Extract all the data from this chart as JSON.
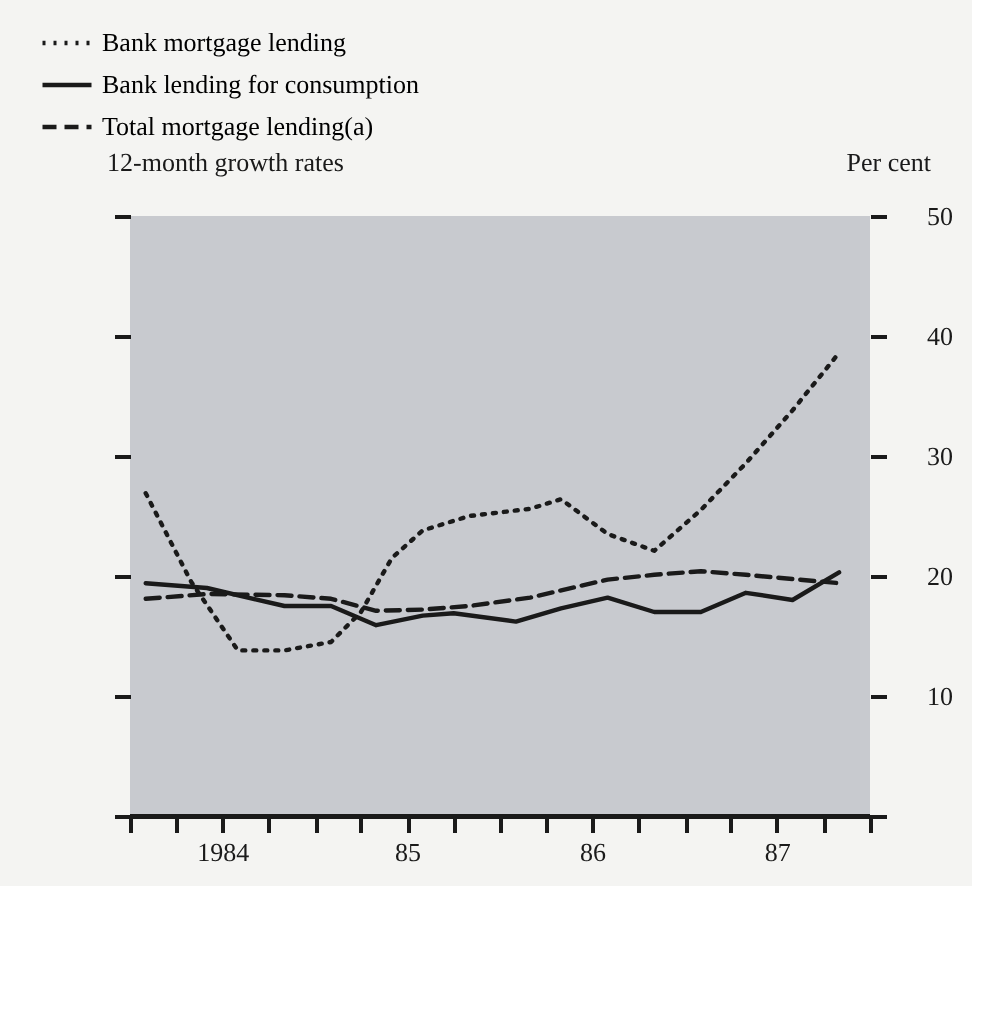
{
  "chart_data": {
    "type": "line",
    "ylabel": "12-month growth rates",
    "y2label": "Per cent",
    "xlim": [
      "1984",
      "1988"
    ],
    "xticks": [
      {
        "value": "1984",
        "label": null
      },
      {
        "value": "1984-04",
        "label": null
      },
      {
        "value": "1984-07",
        "label": "1984"
      },
      {
        "value": "1984-10",
        "label": null
      },
      {
        "value": "1985",
        "label": null
      },
      {
        "value": "1985-04",
        "label": null
      },
      {
        "value": "1985-07",
        "label": "85"
      },
      {
        "value": "1985-10",
        "label": null
      },
      {
        "value": "1986",
        "label": null
      },
      {
        "value": "1986-04",
        "label": null
      },
      {
        "value": "1986-07",
        "label": "86"
      },
      {
        "value": "1986-10",
        "label": null
      },
      {
        "value": "1987",
        "label": null
      },
      {
        "value": "1987-04",
        "label": null
      },
      {
        "value": "1987-07",
        "label": "87"
      },
      {
        "value": "1987-10",
        "label": null
      },
      {
        "value": "1988",
        "label": null
      }
    ],
    "y2lim": [
      0,
      50
    ],
    "y2ticks": [
      {
        "value": 0,
        "label": null
      },
      10,
      20,
      30,
      40,
      50
    ],
    "grid": false,
    "legend": "top left",
    "series": [
      {
        "name": "Bank mortgage lending",
        "color": "#1a1a1a",
        "axis": "y2",
        "line_style": "dotted",
        "x": [
          "1984-02",
          "1984-05",
          "1984-08",
          "1984-11",
          "1985-02",
          "1985-04",
          "1985-06",
          "1985-08",
          "1985-11",
          "1986-03",
          "1986-05",
          "1986-08",
          "1986-11",
          "1987-02",
          "1987-05",
          "1987-08",
          "1987-11"
        ],
        "values": [
          26.9,
          19.5,
          13.8,
          13.8,
          14.5,
          17.0,
          21.5,
          23.8,
          25.0,
          25.6,
          26.4,
          23.5,
          22.1,
          25.5,
          29.4,
          33.8,
          38.6
        ]
      },
      {
        "name": "Bank lending for consumption",
        "color": "#1a1a1a",
        "axis": "y2",
        "line_style": "solid",
        "x": [
          "1984-02",
          "1984-06",
          "1984-11",
          "1985-02",
          "1985-05",
          "1985-08",
          "1985-10",
          "1986-02",
          "1986-05",
          "1986-08",
          "1986-11",
          "1987-02",
          "1987-05",
          "1987-08",
          "1987-11"
        ],
        "values": [
          19.4,
          19.0,
          17.5,
          17.5,
          15.9,
          16.7,
          16.9,
          16.2,
          17.3,
          18.2,
          17.0,
          17.0,
          18.6,
          18.0,
          20.3
        ]
      },
      {
        "name": "Total mortgage lending(a)",
        "color": "#1a1a1a",
        "axis": "y2",
        "line_style": "dashed",
        "x": [
          "1984-02",
          "1984-06",
          "1984-11",
          "1985-02",
          "1985-05",
          "1985-08",
          "1985-11",
          "1986-03",
          "1986-08",
          "1986-11",
          "1987-02",
          "1987-05",
          "1987-11"
        ],
        "values": [
          18.1,
          18.5,
          18.4,
          18.1,
          17.1,
          17.2,
          17.5,
          18.2,
          19.7,
          20.1,
          20.4,
          20.1,
          19.4
        ]
      }
    ]
  }
}
